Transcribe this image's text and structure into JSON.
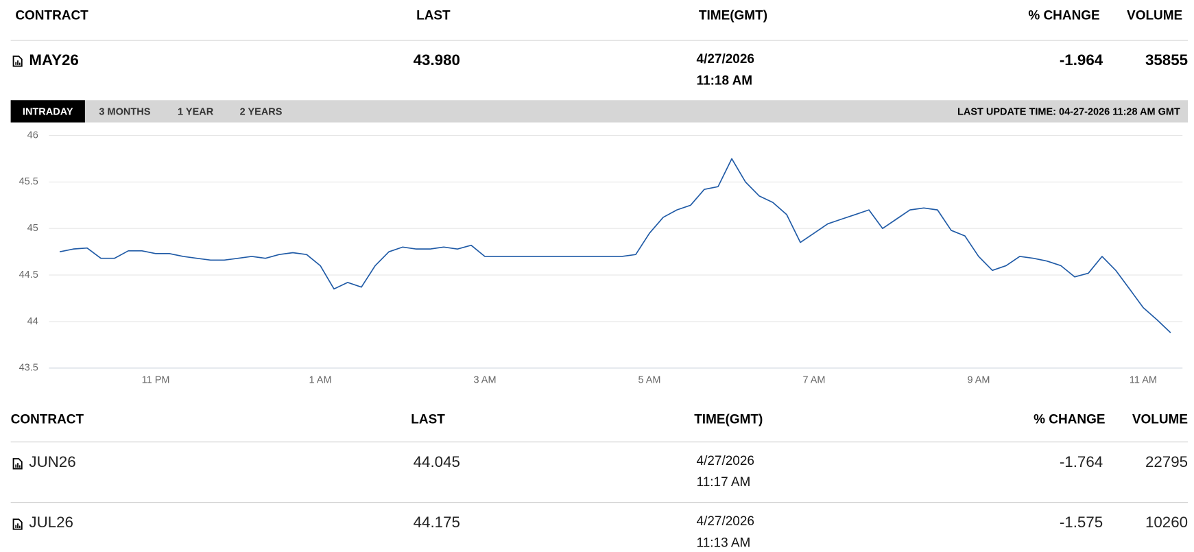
{
  "header": {
    "columns": [
      "CONTRACT",
      "LAST",
      "TIME(GMT)",
      "% CHANGE",
      "VOLUME"
    ]
  },
  "main": {
    "contract": "MAY26",
    "last": "43.980",
    "date": "4/27/2026",
    "time": "11:18 AM",
    "change": "-1.964",
    "volume": "35855"
  },
  "tabs": [
    "INTRADAY",
    "3 MONTHS",
    "1 YEAR",
    "2 YEARS"
  ],
  "last_update": "LAST UPDATE TIME: 04-27-2026 11:28 AM GMT",
  "chart_data": {
    "type": "line",
    "color": "#1f5aa6",
    "categories": [
      null,
      null,
      null,
      null,
      null,
      null,
      null,
      "11 PM",
      null,
      null,
      null,
      null,
      null,
      null,
      null,
      null,
      null,
      null,
      null,
      "1 AM",
      null,
      null,
      null,
      null,
      null,
      null,
      null,
      null,
      null,
      null,
      null,
      "3 AM",
      null,
      null,
      null,
      null,
      null,
      null,
      null,
      null,
      null,
      null,
      null,
      "5 AM",
      null,
      null,
      null,
      null,
      null,
      null,
      null,
      null,
      null,
      null,
      null,
      "7 AM",
      null,
      null,
      null,
      null,
      null,
      null,
      null,
      null,
      null,
      null,
      null,
      "9 AM",
      null,
      null,
      null,
      null,
      null,
      null,
      null,
      null,
      null,
      null,
      null,
      "11 AM",
      null,
      null
    ],
    "values": [
      44.75,
      44.78,
      44.79,
      44.68,
      44.68,
      44.76,
      44.76,
      44.73,
      44.73,
      44.7,
      44.68,
      44.66,
      44.66,
      44.68,
      44.7,
      44.68,
      44.72,
      44.74,
      44.72,
      44.6,
      44.35,
      44.42,
      44.37,
      44.6,
      44.75,
      44.8,
      44.78,
      44.78,
      44.8,
      44.78,
      44.82,
      44.7,
      44.7,
      44.7,
      44.7,
      44.7,
      44.7,
      44.7,
      44.7,
      44.7,
      44.7,
      44.7,
      44.72,
      44.95,
      45.12,
      45.2,
      45.25,
      45.42,
      45.45,
      45.75,
      45.5,
      45.35,
      45.28,
      45.15,
      44.85,
      44.95,
      45.05,
      45.1,
      45.15,
      45.2,
      45.0,
      45.1,
      45.2,
      45.22,
      45.2,
      44.98,
      44.92,
      44.7,
      44.55,
      44.6,
      44.7,
      44.68,
      44.65,
      44.6,
      44.48,
      44.52,
      44.7,
      44.55,
      44.35,
      44.15,
      44.02,
      43.88
    ],
    "ylim": [
      43.5,
      46
    ],
    "yticks": [
      43.5,
      44,
      44.5,
      45,
      45.5,
      46
    ],
    "grid": true
  },
  "table": {
    "header": [
      "CONTRACT",
      "LAST",
      "TIME(GMT)",
      "% CHANGE",
      "VOLUME"
    ],
    "rows": [
      [
        "JUN26",
        "44.045",
        "4/27/2026",
        "11:17 AM",
        "-1.764",
        "22795"
      ],
      [
        "JUL26",
        "44.175",
        "4/27/2026",
        "11:13 AM",
        "-1.575",
        "10260"
      ]
    ]
  }
}
